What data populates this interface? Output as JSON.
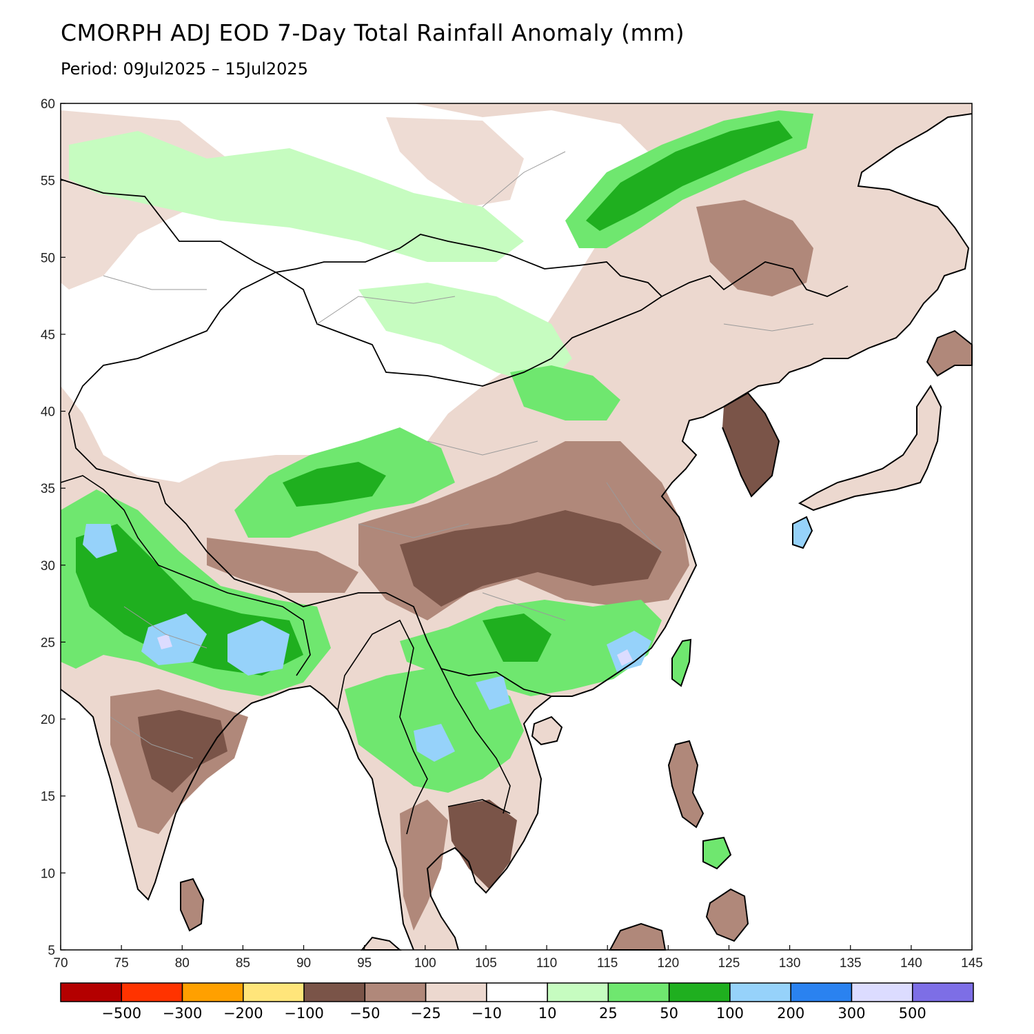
{
  "header": {
    "title": "CMORPH ADJ EOD 7-Day Total Rainfall Anomaly (mm)",
    "subtitle": "Period: 09Jul2025 – 15Jul2025"
  },
  "map": {
    "lon_range": [
      70,
      145
    ],
    "lat_range": [
      5,
      60
    ],
    "lon_ticks": [
      70,
      75,
      80,
      85,
      90,
      95,
      100,
      105,
      110,
      115,
      120,
      125,
      130,
      135,
      140,
      145
    ],
    "lat_ticks": [
      5,
      10,
      15,
      20,
      25,
      30,
      35,
      40,
      45,
      50,
      55,
      60
    ],
    "ocean_color": "#ffffff",
    "coast_color": "#000000",
    "border_color": "#9a9a9a"
  },
  "legend": {
    "colors": [
      "#b40000",
      "#ff3300",
      "#ffa000",
      "#ffe57a",
      "#7a5448",
      "#b0887a",
      "#ecd8cf",
      "#ffffff",
      "#c6fcc0",
      "#6fe76f",
      "#1faf1f",
      "#96d2fa",
      "#2a82f0",
      "#dcdcff",
      "#7d6ee6"
    ],
    "labels": [
      "−500",
      "−300",
      "−200",
      "−100",
      "−50",
      "−25",
      "−10",
      "10",
      "25",
      "50",
      "100",
      "200",
      "300",
      "500"
    ]
  }
}
